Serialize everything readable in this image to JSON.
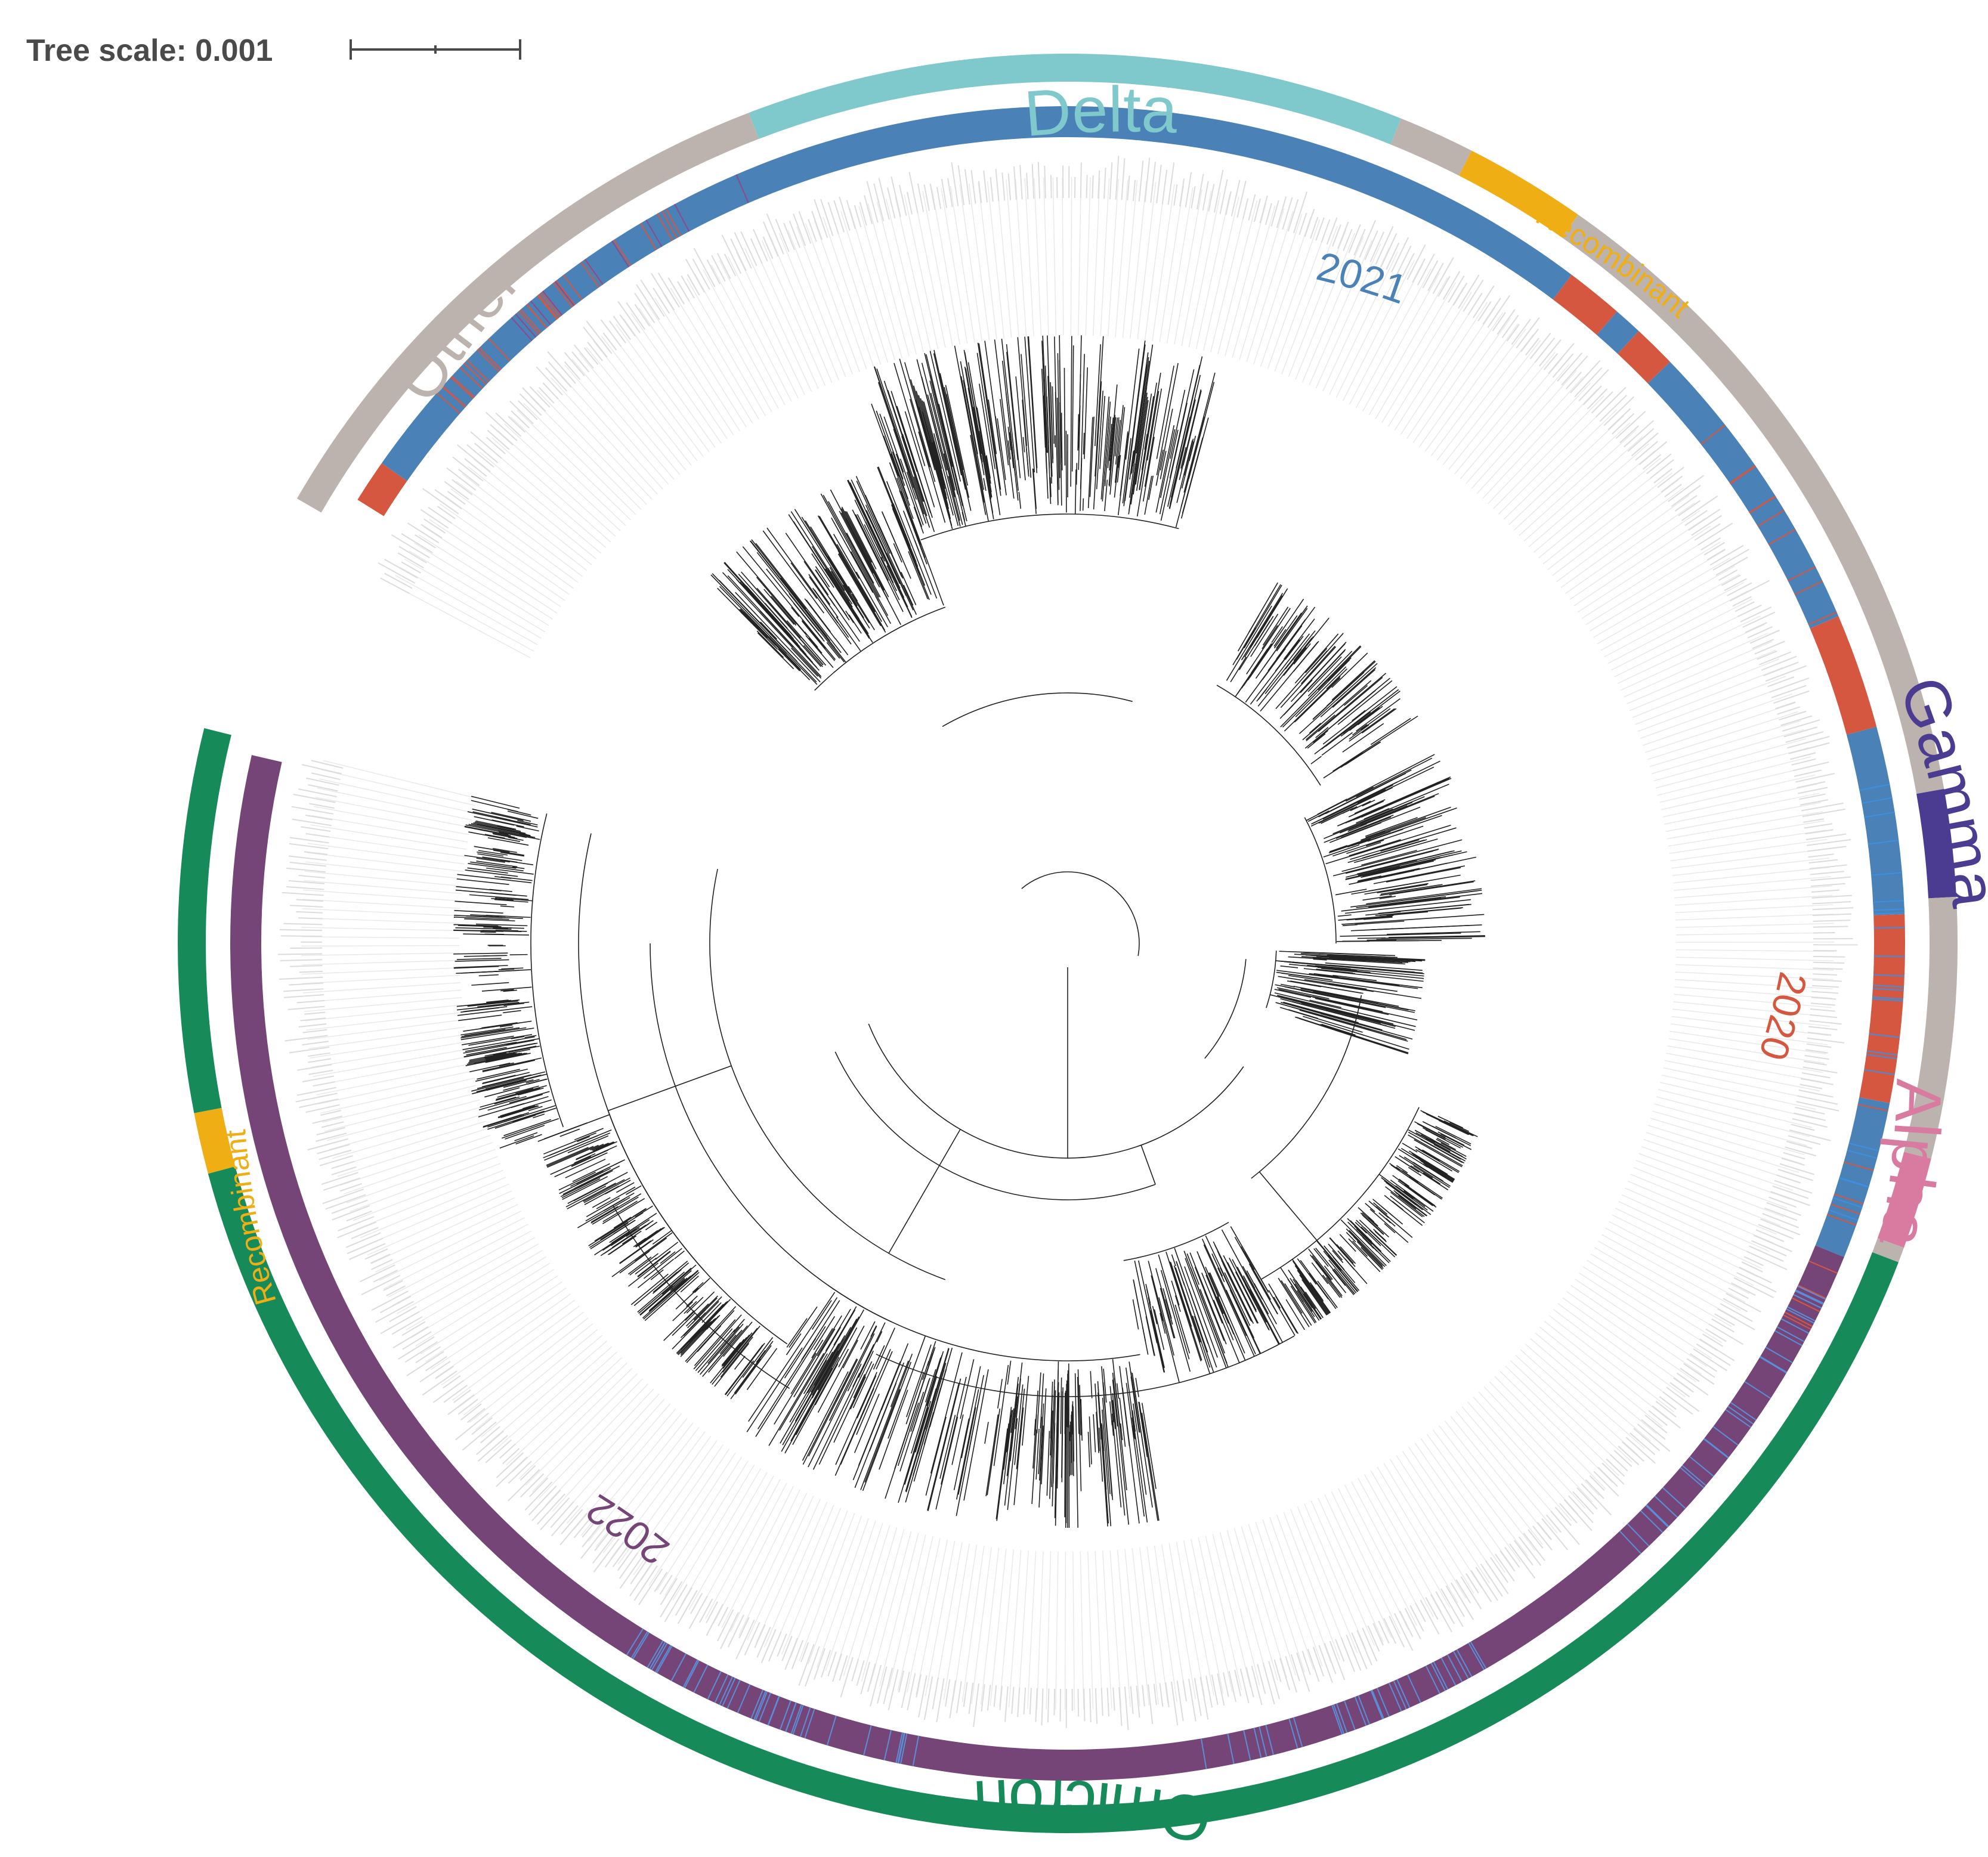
{
  "tree_scale": {
    "label": "Tree scale: 0.001"
  },
  "lineage_ring": {
    "segments": [
      {
        "name": "Other",
        "color": "#BCB3AE",
        "from_deg": -60,
        "to_deg": -21
      },
      {
        "name": "Delta",
        "color": "#7FC8CC",
        "from_deg": -21,
        "to_deg": 22
      },
      {
        "name": "Other",
        "color": "#BCB3AE",
        "from_deg": 22,
        "to_deg": 27
      },
      {
        "name": "Recombinant",
        "color": "#EFAE14",
        "from_deg": 27,
        "to_deg": 35
      },
      {
        "name": "Other",
        "color": "#BCB3AE",
        "from_deg": 35,
        "to_deg": 80
      },
      {
        "name": "Gamma",
        "color": "#4B3C91",
        "from_deg": 80,
        "to_deg": 87
      },
      {
        "name": "Other",
        "color": "#BCB3AE",
        "from_deg": 87,
        "to_deg": 104
      },
      {
        "name": "Alpha",
        "color": "#D97AA1",
        "from_deg": 104,
        "to_deg": 110
      },
      {
        "name": "Other",
        "color": "#BCB3AE",
        "from_deg": 110,
        "to_deg": 111
      },
      {
        "name": "Omicron",
        "color": "#178A5A",
        "from_deg": 111,
        "to_deg": 255
      },
      {
        "name": "Recombinant",
        "color": "#EFAE14",
        "from_deg": 255,
        "to_deg": 259
      },
      {
        "name": "Omicron",
        "color": "#178A5A",
        "from_deg": 259,
        "to_deg": 284
      }
    ]
  },
  "year_ring": {
    "segments": [
      {
        "year": "2020",
        "color": "#D6573F",
        "from_deg": -58,
        "to_deg": -55
      },
      {
        "year": "2021",
        "color": "#4A81B6",
        "from_deg": -55,
        "to_deg": 37
      },
      {
        "year": "2020",
        "color": "#D6573F",
        "from_deg": 37,
        "to_deg": 41
      },
      {
        "year": "2021",
        "color": "#4A81B6",
        "from_deg": 41,
        "to_deg": 43
      },
      {
        "year": "2020",
        "color": "#D6573F",
        "from_deg": 43,
        "to_deg": 46
      },
      {
        "year": "2021",
        "color": "#4A81B6",
        "from_deg": 46,
        "to_deg": 67
      },
      {
        "year": "2020",
        "color": "#D6573F",
        "from_deg": 67,
        "to_deg": 75
      },
      {
        "year": "2021",
        "color": "#4A81B6",
        "from_deg": 75,
        "to_deg": 88
      },
      {
        "year": "2020",
        "color": "#D6573F",
        "from_deg": 88,
        "to_deg": 101
      },
      {
        "year": "2021",
        "color": "#4A81B6",
        "from_deg": 101,
        "to_deg": 112
      },
      {
        "year": "2022",
        "color": "#744576",
        "from_deg": 112,
        "to_deg": 283
      }
    ]
  },
  "labels": {
    "delta": "Delta",
    "other": "Other",
    "recombinant_top": "Recombinant",
    "gamma": "Gamma",
    "alpha": "Alpha",
    "omicron": "Omicron",
    "recombinant_left": "Recombinant",
    "year_2021": "2021",
    "year_2020": "2020",
    "year_2022": "2022"
  },
  "colors": {
    "other": "#BCB3AE",
    "delta": "#7FC8CC",
    "recombinant": "#EFAE14",
    "gamma": "#4B3C91",
    "alpha": "#D97AA1",
    "omicron": "#178A5A",
    "y2020": "#D6573F",
    "y2021": "#4A81B6",
    "y2022": "#744576",
    "tree": "#1a1a1a",
    "guide": "#E4E4E4"
  }
}
